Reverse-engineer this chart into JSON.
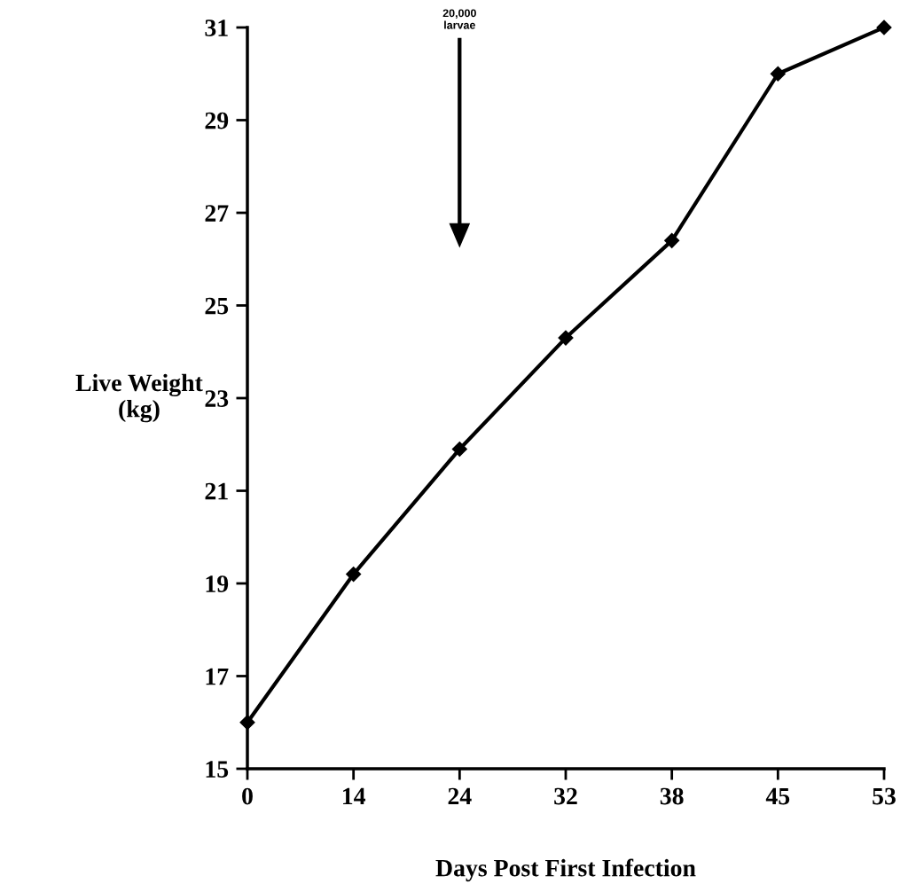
{
  "chart_data": {
    "type": "line",
    "xlabel": "Days Post First Infection",
    "ylabel": "Live Weight\n(kg)",
    "categories": [
      "0",
      "14",
      "24",
      "32",
      "38",
      "45",
      "53"
    ],
    "series": [
      {
        "color": "#000000",
        "values": [
          16.0,
          19.2,
          21.9,
          24.3,
          26.4,
          30.0,
          31.0
        ]
      }
    ],
    "ylim": [
      15,
      31
    ],
    "yticks": [
      15,
      17,
      19,
      21,
      23,
      25,
      27,
      29,
      31
    ],
    "marker": "diamond",
    "line_style": "solid",
    "grid": false,
    "annotations": [
      "20,000\nlarvae"
    ]
  }
}
